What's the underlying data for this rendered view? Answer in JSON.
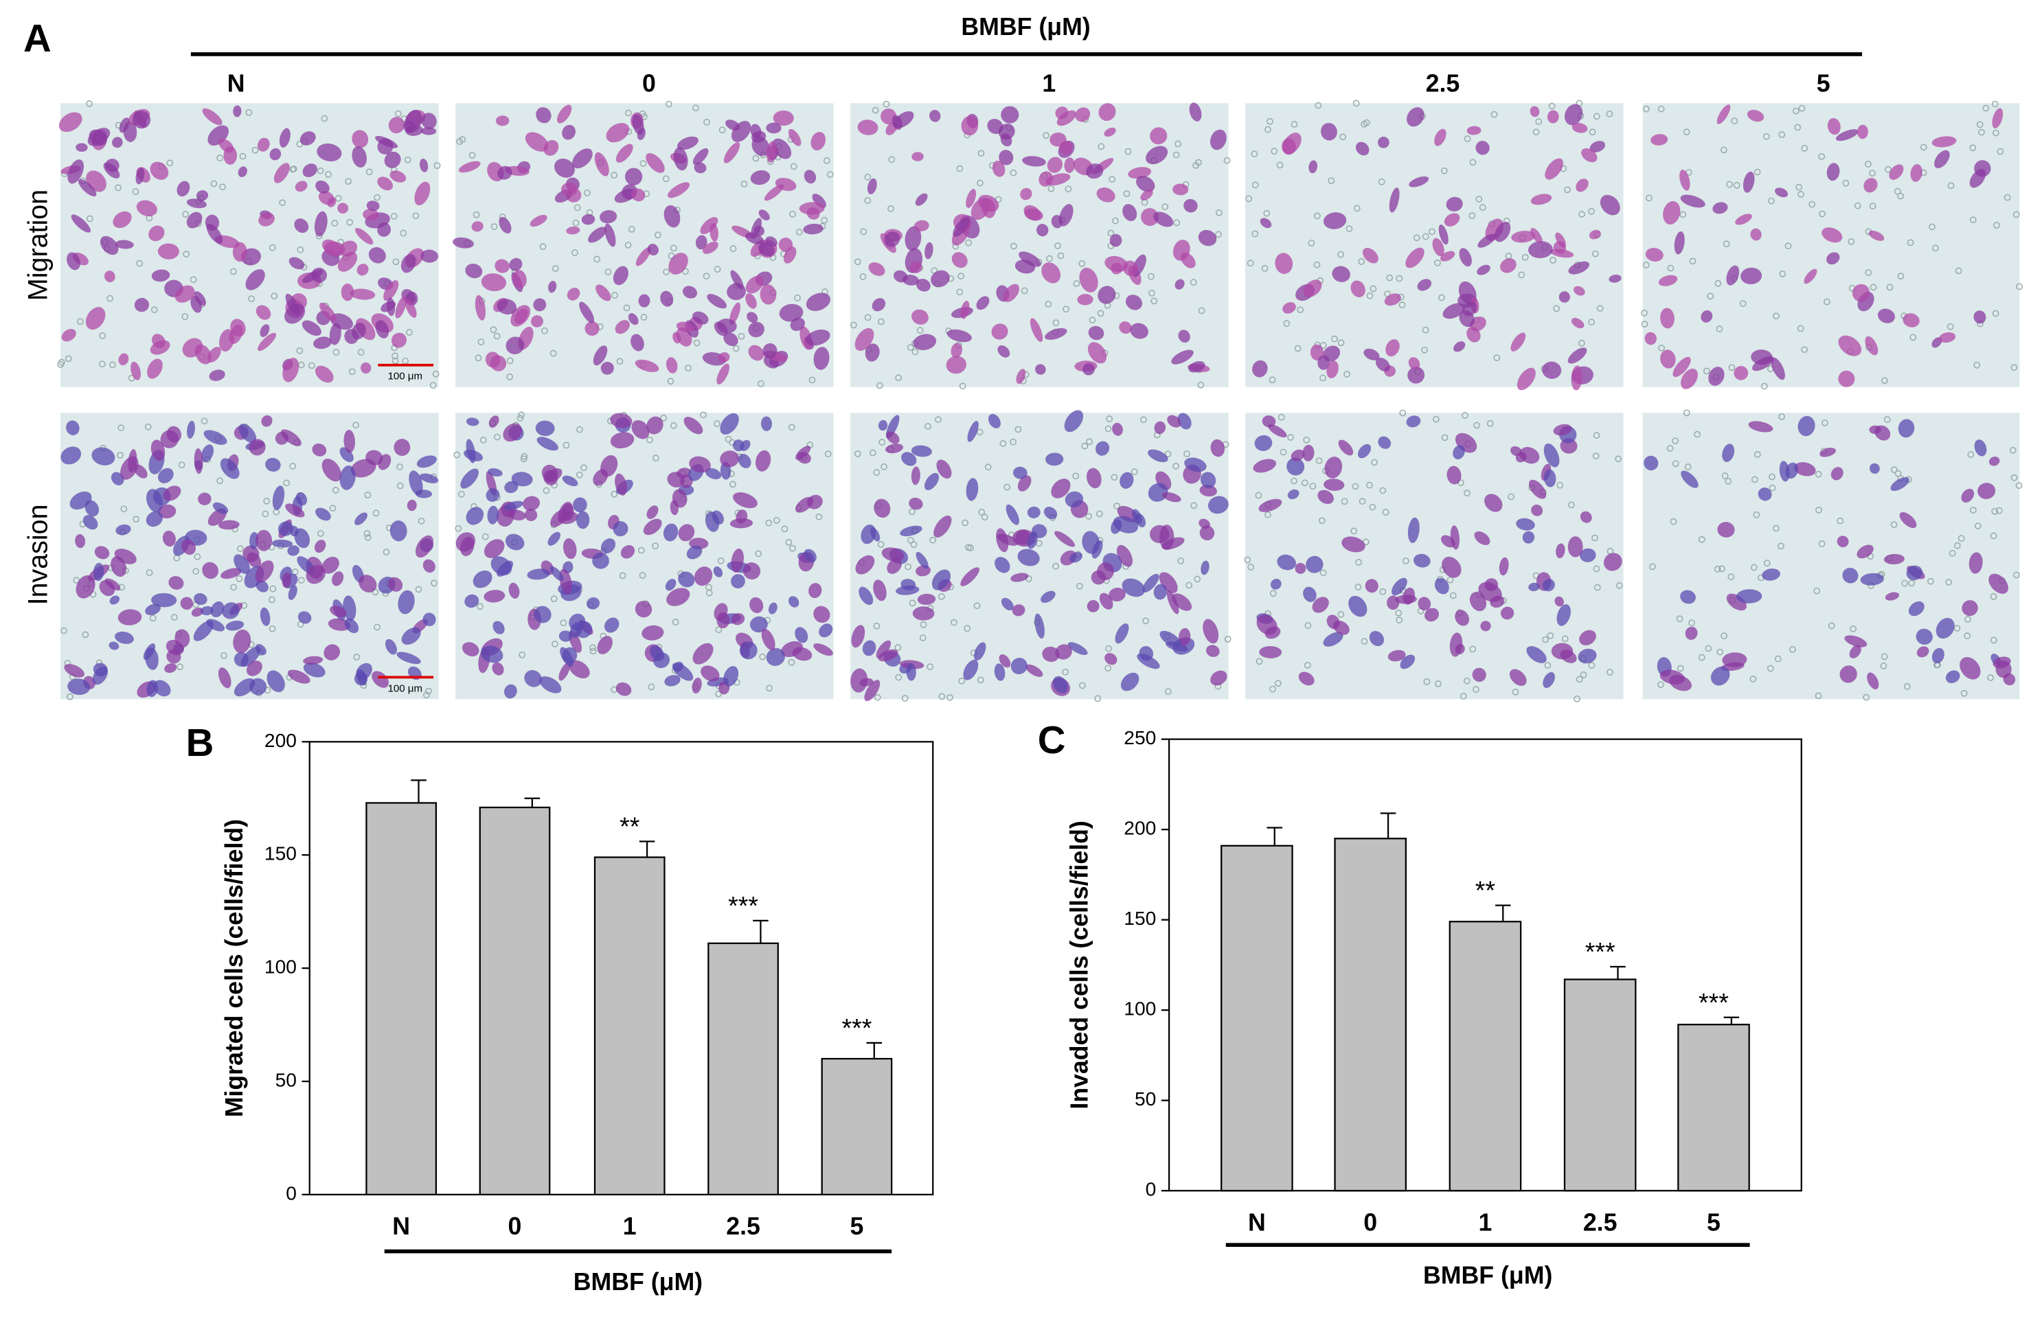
{
  "panel_a": {
    "label": "A",
    "header": "BMBF (μM)",
    "columns": [
      "N",
      "0",
      "1",
      "2.5",
      "5"
    ],
    "rows": [
      "Migration",
      "Invasion"
    ],
    "scale_bar": "100 μm"
  },
  "chart_data": [
    {
      "type": "bar",
      "panel": "B",
      "y_label": "Migrated cells (cells/field)",
      "x_label": "BMBF (μM)",
      "categories": [
        "N",
        "0",
        "1",
        "2.5",
        "5"
      ],
      "values": [
        173,
        171,
        149,
        111,
        60
      ],
      "errors": [
        10,
        4,
        7,
        10,
        7
      ],
      "annotations": [
        null,
        null,
        "**",
        "***",
        "***"
      ],
      "color": "#c0c0c0",
      "ylim": [
        0,
        200
      ],
      "yticks": [
        0,
        50,
        100,
        150,
        200
      ]
    },
    {
      "type": "bar",
      "panel": "C",
      "y_label": "Invaded cells (cells/field)",
      "x_label": "BMBF (μM)",
      "categories": [
        "N",
        "0",
        "1",
        "2.5",
        "5"
      ],
      "values": [
        191,
        195,
        149,
        117,
        92
      ],
      "errors": [
        10,
        14,
        9,
        7,
        4
      ],
      "annotations": [
        null,
        null,
        "**",
        "***",
        "***"
      ],
      "color": "#c0c0c0",
      "ylim": [
        0,
        250
      ],
      "yticks": [
        0,
        50,
        100,
        150,
        200,
        250
      ]
    }
  ]
}
